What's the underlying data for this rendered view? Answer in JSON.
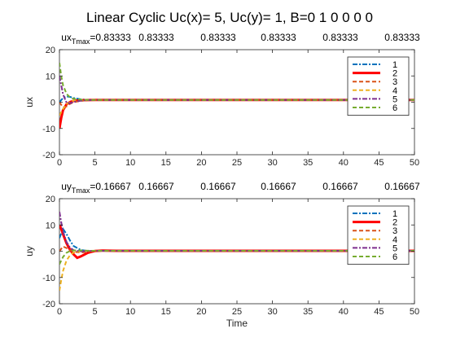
{
  "figure": {
    "title": "Linear Cyclic   Uc(x)= 5, Uc(y)= 1, B=0  1  0  0  0  0"
  },
  "chart_data": [
    {
      "type": "line",
      "panel": "ux",
      "title": "",
      "annotation": {
        "prefix": "ux",
        "subscript": "Tmax",
        "first": "=0.83333",
        "rest": [
          "0.83333",
          "0.83333",
          "0.83333",
          "0.83333",
          "0.83333"
        ]
      },
      "xlabel": "",
      "ylabel": "ux",
      "xlim": [
        0,
        50
      ],
      "ylim": [
        -20,
        20
      ],
      "xticks": [
        0,
        5,
        10,
        15,
        20,
        25,
        30,
        35,
        40,
        45,
        50
      ],
      "yticks": [
        -20,
        -10,
        0,
        10,
        20
      ],
      "grid": false,
      "legend_position": "top-right",
      "series": [
        {
          "name": "1",
          "color": "#0072BD",
          "dash": "dash-dot",
          "x": [
            0,
            0.5,
            1,
            1.5,
            2,
            3,
            4,
            5,
            6,
            7,
            8,
            10,
            20,
            30,
            40,
            50
          ],
          "y": [
            0,
            1.6,
            2.2,
            2.0,
            1.6,
            1.1,
            0.9,
            0.85,
            0.84,
            0.83,
            0.83,
            0.83,
            0.83,
            0.83,
            0.83,
            0.83
          ]
        },
        {
          "name": "2",
          "color": "#FF0000",
          "dash": "solid",
          "x": [
            0,
            0.25,
            0.5,
            1,
            1.5,
            2,
            3,
            4,
            5,
            6,
            7,
            8,
            10,
            20,
            30,
            40,
            50
          ],
          "y": [
            -10,
            -6,
            -3,
            -0.8,
            0.1,
            0.5,
            0.75,
            0.82,
            0.85,
            0.84,
            0.83,
            0.83,
            0.83,
            0.83,
            0.83,
            0.83,
            0.83
          ]
        },
        {
          "name": "3",
          "color": "#D95319",
          "dash": "dash",
          "x": [
            0,
            0.5,
            1,
            1.5,
            2,
            3,
            4,
            5,
            6,
            7,
            8,
            10,
            20,
            30,
            40,
            50
          ],
          "y": [
            0,
            -2.0,
            -1.6,
            -0.6,
            0.0,
            0.5,
            0.75,
            0.82,
            0.84,
            0.83,
            0.83,
            0.83,
            0.83,
            0.83,
            0.83,
            0.83
          ]
        },
        {
          "name": "4",
          "color": "#EDB120",
          "dash": "dash",
          "x": [
            0,
            0.5,
            1,
            1.5,
            2,
            3,
            4,
            5,
            6,
            7,
            8,
            10,
            20,
            30,
            40,
            50
          ],
          "y": [
            -5,
            -2.6,
            -0.8,
            0.2,
            0.6,
            0.8,
            0.85,
            0.9,
            0.86,
            0.83,
            0.83,
            0.83,
            0.83,
            0.83,
            0.83,
            0.83
          ]
        },
        {
          "name": "5",
          "color": "#7E2F8E",
          "dash": "dash-dot",
          "x": [
            0,
            0.5,
            1,
            1.5,
            2,
            3,
            4,
            5,
            6,
            7,
            8,
            10,
            20,
            30,
            40,
            50
          ],
          "y": [
            10,
            3.0,
            -0.2,
            -0.4,
            0.1,
            0.6,
            0.8,
            0.84,
            0.84,
            0.83,
            0.83,
            0.83,
            0.83,
            0.83,
            0.83,
            0.83
          ]
        },
        {
          "name": "6",
          "color": "#77AC30",
          "dash": "dash",
          "x": [
            0,
            0.25,
            0.5,
            1,
            1.5,
            2,
            3,
            4,
            5,
            6,
            7,
            8,
            10,
            20,
            30,
            40,
            50
          ],
          "y": [
            15,
            10,
            6.5,
            3.2,
            1.8,
            1.3,
            1.0,
            0.9,
            0.85,
            0.84,
            0.83,
            0.83,
            0.83,
            0.83,
            0.83,
            0.83,
            0.83
          ]
        }
      ]
    },
    {
      "type": "line",
      "panel": "uy",
      "title": "",
      "annotation": {
        "prefix": "uy",
        "subscript": "Tmax",
        "first": "=0.16667",
        "rest": [
          "0.16667",
          "0.16667",
          "0.16667",
          "0.16667",
          "0.16667"
        ]
      },
      "xlabel": "Time",
      "ylabel": "uy",
      "xlim": [
        0,
        50
      ],
      "ylim": [
        -20,
        20
      ],
      "xticks": [
        0,
        5,
        10,
        15,
        20,
        25,
        30,
        35,
        40,
        45,
        50
      ],
      "yticks": [
        -20,
        -10,
        0,
        10,
        20
      ],
      "grid": false,
      "legend_position": "top-right",
      "series": [
        {
          "name": "1",
          "color": "#0072BD",
          "dash": "dash-dot",
          "x": [
            0,
            0.5,
            1,
            1.5,
            2,
            3,
            4,
            5,
            6,
            7,
            8,
            10,
            20,
            30,
            40,
            50
          ],
          "y": [
            5,
            8.5,
            6.5,
            4.0,
            2.0,
            0.5,
            0.1,
            0.15,
            0.17,
            0.17,
            0.17,
            0.17,
            0.17,
            0.17,
            0.17,
            0.17
          ]
        },
        {
          "name": "2",
          "color": "#FF0000",
          "dash": "solid",
          "x": [
            0,
            0.25,
            0.5,
            1,
            1.5,
            2,
            2.5,
            3,
            4,
            5,
            6,
            7,
            8,
            10,
            20,
            30,
            40,
            50
          ],
          "y": [
            10,
            8.5,
            6.5,
            3.0,
            0.5,
            -1.2,
            -2.5,
            -2.0,
            -0.6,
            0.1,
            0.25,
            0.2,
            0.17,
            0.17,
            0.17,
            0.17,
            0.17,
            0.17
          ]
        },
        {
          "name": "3",
          "color": "#D95319",
          "dash": "dash",
          "x": [
            0,
            0.5,
            1,
            1.5,
            2,
            3,
            4,
            5,
            6,
            7,
            8,
            10,
            20,
            30,
            40,
            50
          ],
          "y": [
            0,
            1.8,
            1.2,
            0.4,
            -0.2,
            -0.5,
            -0.2,
            0.1,
            0.17,
            0.17,
            0.17,
            0.17,
            0.17,
            0.17,
            0.17,
            0.17
          ]
        },
        {
          "name": "4",
          "color": "#EDB120",
          "dash": "dash",
          "x": [
            0,
            0.25,
            0.5,
            1,
            1.5,
            2,
            3,
            4,
            5,
            6,
            7,
            8,
            10,
            20,
            30,
            40,
            50
          ],
          "y": [
            -15,
            -11,
            -7.5,
            -3.5,
            -1.5,
            -0.5,
            0.0,
            0.15,
            0.2,
            0.17,
            0.17,
            0.17,
            0.17,
            0.17,
            0.17,
            0.17,
            0.17
          ]
        },
        {
          "name": "5",
          "color": "#7E2F8E",
          "dash": "dash-dot",
          "x": [
            0,
            0.25,
            0.5,
            1,
            1.5,
            2,
            3,
            4,
            5,
            6,
            7,
            8,
            10,
            20,
            30,
            40,
            50
          ],
          "y": [
            15,
            11,
            7.5,
            3.5,
            1.3,
            0.4,
            -0.1,
            0.1,
            0.17,
            0.17,
            0.17,
            0.17,
            0.17,
            0.17,
            0.17,
            0.17,
            0.17
          ]
        },
        {
          "name": "6",
          "color": "#77AC30",
          "dash": "dash",
          "x": [
            0,
            0.5,
            1,
            1.5,
            2,
            3,
            4,
            5,
            6,
            7,
            8,
            10,
            20,
            30,
            40,
            50
          ],
          "y": [
            -5,
            -2.2,
            -0.6,
            0.1,
            0.3,
            0.3,
            0.2,
            0.17,
            0.17,
            0.17,
            0.17,
            0.17,
            0.17,
            0.17,
            0.17,
            0.17
          ]
        }
      ]
    }
  ]
}
